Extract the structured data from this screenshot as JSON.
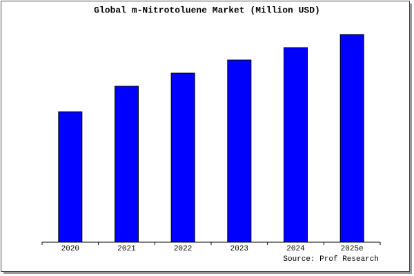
{
  "chart_data": {
    "type": "bar",
    "title": "Global m-Nitrotoluene Market (Million USD)",
    "categories": [
      "2020",
      "2021",
      "2022",
      "2023",
      "2024",
      "2025e"
    ],
    "values": [
      189,
      226,
      245,
      264,
      282,
      301
    ],
    "color": "#0000ff",
    "ylim": [
      0,
      303
    ],
    "source": "Source: Prof Research"
  }
}
